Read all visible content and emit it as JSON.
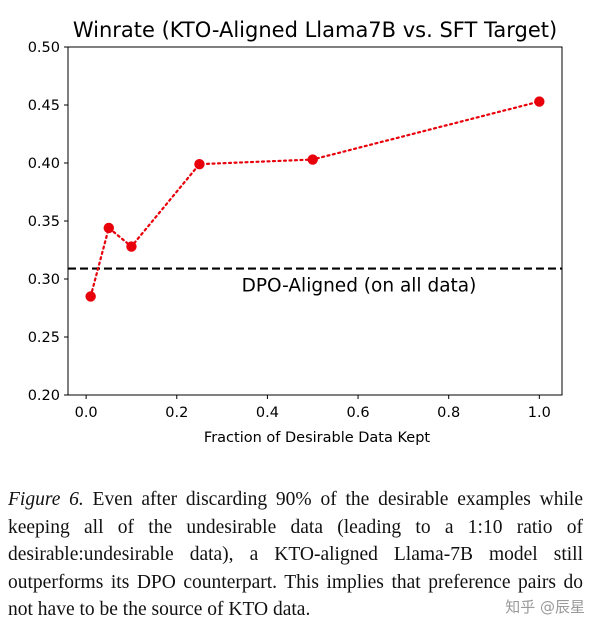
{
  "chart_data": {
    "type": "line",
    "title": "Winrate (KTO-Aligned Llama7B vs. SFT Target)",
    "xlabel": "Fraction of Desirable Data Kept",
    "ylabel": "",
    "xlim": [
      -0.04,
      1.05
    ],
    "ylim": [
      0.2,
      0.5
    ],
    "x_ticks": [
      0.0,
      0.2,
      0.4,
      0.6,
      0.8,
      1.0
    ],
    "x_tick_labels": [
      "0.0",
      "0.2",
      "0.4",
      "0.6",
      "0.8",
      "1.0"
    ],
    "y_ticks": [
      0.2,
      0.25,
      0.3,
      0.35,
      0.4,
      0.45,
      0.5
    ],
    "y_tick_labels": [
      "0.20",
      "0.25",
      "0.30",
      "0.35",
      "0.40",
      "0.45",
      "0.50"
    ],
    "grid": false,
    "series": [
      {
        "name": "KTO-Aligned",
        "style": "dotted",
        "marker": "circle",
        "color": "#e8000b",
        "x": [
          0.01,
          0.05,
          0.1,
          0.25,
          0.5,
          1.0
        ],
        "y": [
          0.285,
          0.344,
          0.328,
          0.399,
          0.403,
          0.453
        ]
      }
    ],
    "reference_lines": [
      {
        "orientation": "horizontal",
        "value": 0.309,
        "style": "dashed",
        "color": "#000000",
        "label": "DPO-Aligned (on all data)"
      }
    ]
  },
  "caption": {
    "label": "Figure 6.",
    "text": " Even after discarding 90% of the desirable examples while keeping all of the undesirable data (leading to a 1:10 ratio of desirable:undesirable data), a KTO-aligned Llama-7B model still outperforms its DPO counterpart. This implies that preference pairs do not have to be the source of KTO data."
  },
  "watermark": "知乎 @辰星"
}
